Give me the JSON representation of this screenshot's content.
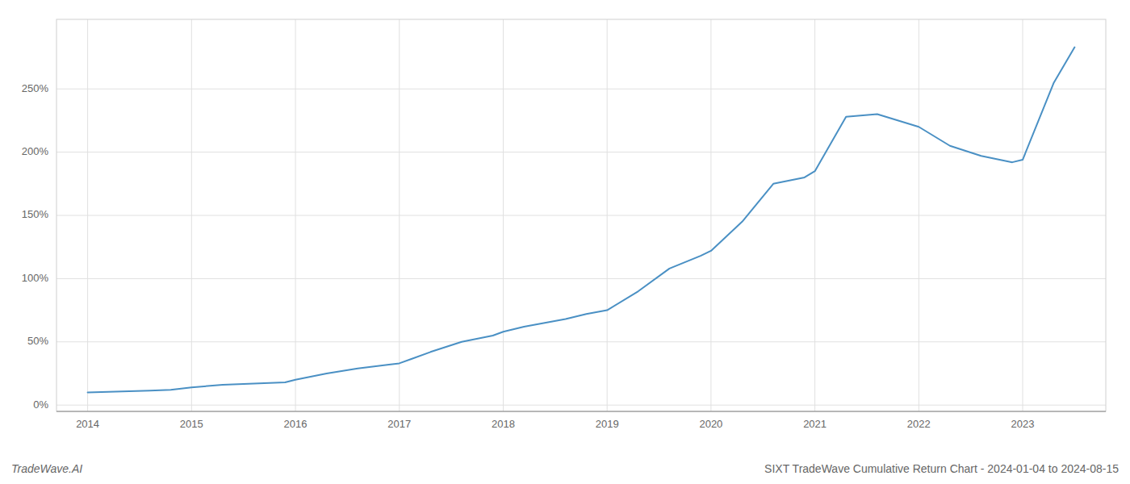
{
  "chart_data": {
    "type": "line",
    "title": "SIXT TradeWave Cumulative Return Chart - 2024-01-04 to 2024-08-15",
    "annotations": [
      "TradeWave.AI"
    ],
    "color": "#4a90c4",
    "x": [
      2014.0,
      2014.2,
      2014.4,
      2014.6,
      2014.8,
      2015.0,
      2015.3,
      2015.6,
      2015.9,
      2016.0,
      2016.3,
      2016.6,
      2016.9,
      2017.0,
      2017.3,
      2017.6,
      2017.9,
      2018.0,
      2018.2,
      2018.4,
      2018.6,
      2018.8,
      2019.0,
      2019.3,
      2019.6,
      2019.9,
      2020.0,
      2020.3,
      2020.6,
      2020.9,
      2021.0,
      2021.3,
      2021.6,
      2022.0,
      2022.3,
      2022.6,
      2022.9,
      2023.0,
      2023.3,
      2023.5
    ],
    "values": [
      10,
      10.5,
      11,
      11.5,
      12,
      14,
      16,
      17,
      18,
      20,
      25,
      29,
      32,
      33,
      42,
      50,
      55,
      58,
      62,
      65,
      68,
      72,
      75,
      90,
      108,
      118,
      122,
      145,
      175,
      180,
      185,
      228,
      230,
      220,
      205,
      197,
      192,
      194,
      255,
      283
    ],
    "xlim": [
      2013.7,
      2023.8
    ],
    "xticks": [
      2014,
      2015,
      2016,
      2017,
      2018,
      2019,
      2020,
      2021,
      2022,
      2023
    ],
    "ylim": [
      -5,
      305
    ],
    "yticks": [
      {
        "value": 0,
        "label": "0%"
      },
      {
        "value": 50,
        "label": "50%"
      },
      {
        "value": 100,
        "label": "100%"
      },
      {
        "value": 150,
        "label": "150%"
      },
      {
        "value": 200,
        "label": "200%"
      },
      {
        "value": 250,
        "label": "250%"
      }
    ],
    "grid": true
  }
}
